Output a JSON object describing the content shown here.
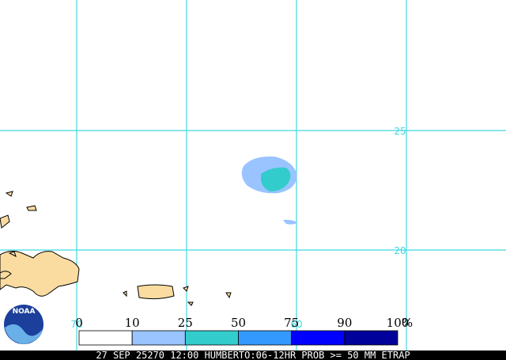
{
  "map": {
    "lat_labels": [
      "25",
      "20"
    ],
    "lon_labels": [
      "70",
      "60"
    ],
    "logo": "NOAA",
    "legend": {
      "labels": [
        "0",
        "10",
        "25",
        "50",
        "75",
        "90",
        "100"
      ],
      "unit": "%",
      "colors": [
        "#ffffff",
        "#99c4ff",
        "#33cccc",
        "#3399ff",
        "#0000ff",
        "#00009a"
      ]
    },
    "footer": "27 SEP 25270 12:00 HUMBERTO:06-12HR PROB >= 50 MM ETRAP"
  }
}
